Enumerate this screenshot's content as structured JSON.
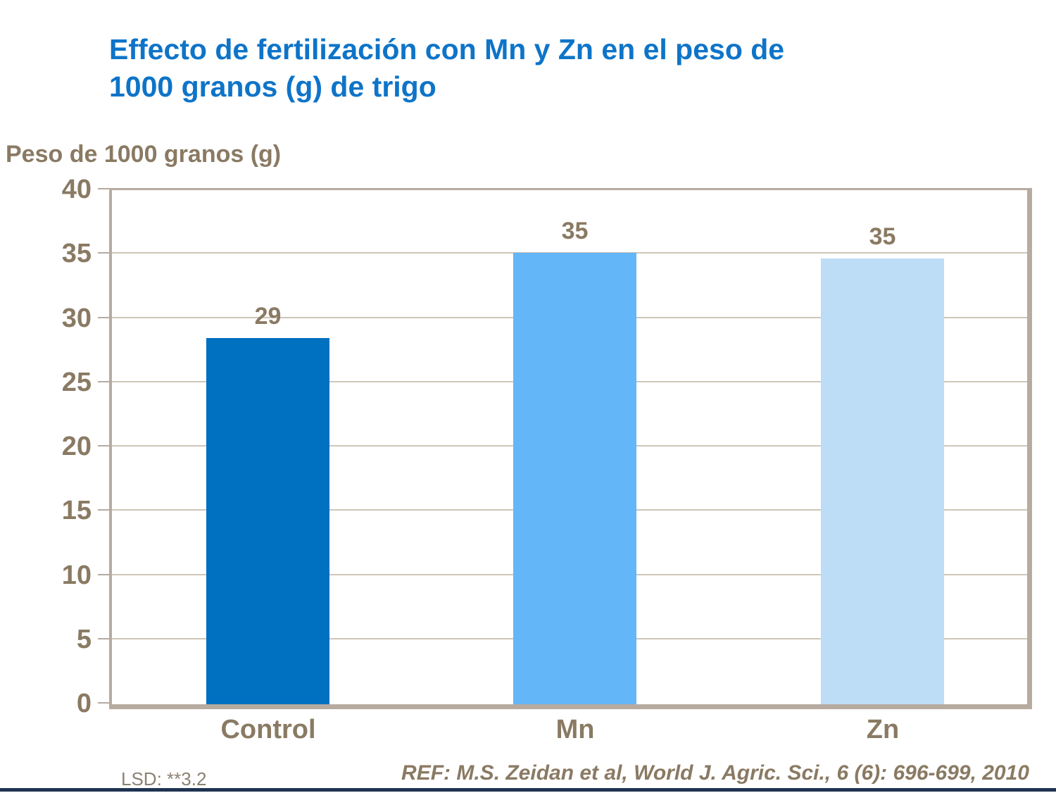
{
  "slide": {
    "title_line1": "Effecto de fertilización con Mn y Zn en el peso de",
    "title_line2": "1000 granos (g) de trigo",
    "footer_lsd": "LSD: **3.2",
    "footer_ref": "REF: M.S. Zeidan et al, World J. Agric. Sci.,  6 (6): 696-699, 2010"
  },
  "chart_data": {
    "type": "bar",
    "title": "Effecto de fertilización con Mn y Zn en el peso de 1000 granos (g) de trigo",
    "ylabel": "Peso de 1000 granos (g)",
    "xlabel": "",
    "categories": [
      "Control",
      "Mn",
      "Zn"
    ],
    "values": [
      29,
      35,
      35
    ],
    "data_labels": [
      "29",
      "35",
      "35"
    ],
    "bar_heights_drawn": [
      28.5,
      35.1,
      34.7
    ],
    "bar_colors": [
      "#0070c0",
      "#63b6f7",
      "#bdddf7"
    ],
    "ylim": [
      0,
      40
    ],
    "yticks": [
      0,
      5,
      10,
      15,
      20,
      25,
      30,
      35,
      40
    ],
    "grid": "horizontal",
    "legend_position": "none",
    "annotations": [
      "LSD: **3.2",
      "REF: M.S. Zeidan et al, World J. Agric. Sci.,  6 (6): 696-699, 2010"
    ]
  },
  "colors": {
    "title_blue": "#0e74c8",
    "axis_text_brown": "#8a7a63",
    "plot_border_tan": "#b7aba0",
    "gridline_tan": "#cfc5b9",
    "lsd_text_gray": "#8c8173",
    "bottom_strip_navy": "#1f3352",
    "background": "#ffffff"
  }
}
